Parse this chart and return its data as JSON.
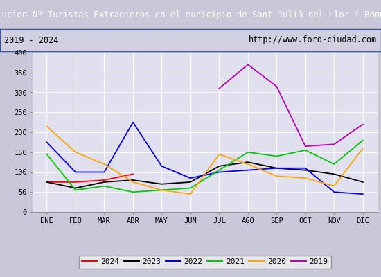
{
  "title": "Evolucion Nº Turistas Extranjeros en el municipio de Sant Julià del Llor i Bonmatí",
  "subtitle_left": "2019 - 2024",
  "subtitle_right": "http://www.foro-ciudad.com",
  "months": [
    "ENE",
    "FEB",
    "MAR",
    "ABR",
    "MAY",
    "JUN",
    "JUL",
    "AGO",
    "SEP",
    "OCT",
    "NOV",
    "DIC"
  ],
  "series": {
    "2024": [
      75,
      75,
      80,
      95,
      null,
      null,
      null,
      null,
      null,
      null,
      null,
      null
    ],
    "2023": [
      75,
      60,
      75,
      80,
      70,
      75,
      115,
      125,
      110,
      105,
      95,
      75
    ],
    "2022": [
      175,
      100,
      100,
      225,
      115,
      85,
      100,
      105,
      110,
      110,
      50,
      45
    ],
    "2021": [
      145,
      55,
      65,
      50,
      55,
      60,
      105,
      150,
      140,
      155,
      120,
      180
    ],
    "2020": [
      215,
      150,
      120,
      75,
      55,
      45,
      145,
      120,
      90,
      85,
      65,
      160
    ],
    "2019": [
      null,
      null,
      null,
      null,
      null,
      null,
      310,
      370,
      315,
      165,
      170,
      220
    ]
  },
  "colors": {
    "2024": "#ff0000",
    "2023": "#000000",
    "2022": "#0000ff",
    "2021": "#00cc00",
    "2020": "#ffa500",
    "2019": "#bb00bb"
  },
  "ylim": [
    0,
    400
  ],
  "yticks": [
    0,
    50,
    100,
    150,
    200,
    250,
    300,
    350,
    400
  ],
  "title_bg_color": "#3355aa",
  "title_text_color": "#ffffff",
  "subtitle_bg_color": "#d0d0e0",
  "plot_bg_color": "#e0e0ee",
  "outer_bg_color": "#c8c8d8",
  "grid_color": "#ffffff",
  "border_color": "#3355aa"
}
